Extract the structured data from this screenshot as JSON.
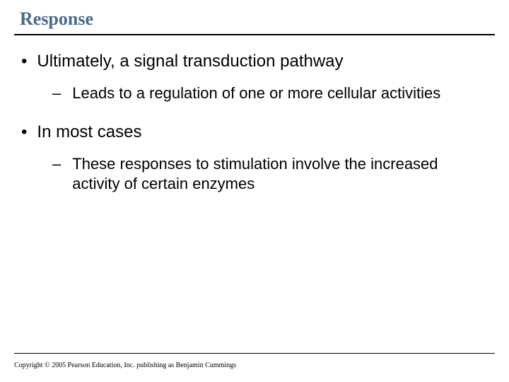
{
  "slide": {
    "title": "Response",
    "title_color": "#4a6a8a",
    "title_fontsize": 26,
    "body_fontsize_l1": 24,
    "body_fontsize_l2": 22,
    "background_color": "#ffffff",
    "rule_color": "#000000",
    "bullets": [
      {
        "level": 1,
        "text": "Ultimately, a signal transduction pathway"
      },
      {
        "level": 2,
        "text": "Leads to a regulation of one or more cellular activities"
      },
      {
        "level": 1,
        "text": "In most cases"
      },
      {
        "level": 2,
        "text": "These responses to stimulation involve the increased activity of certain enzymes"
      }
    ],
    "copyright": "Copyright © 2005 Pearson Education, Inc. publishing as Benjamin Cummings"
  }
}
